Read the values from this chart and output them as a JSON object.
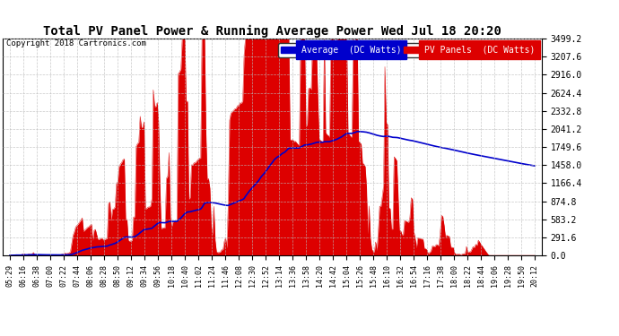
{
  "title": "Total PV Panel Power & Running Average Power Wed Jul 18 20:20",
  "copyright": "Copyright 2018 Cartronics.com",
  "ylabel_right_values": [
    0.0,
    291.6,
    583.2,
    874.8,
    1166.4,
    1458.0,
    1749.6,
    2041.2,
    2332.8,
    2624.4,
    2916.0,
    3207.6,
    3499.2
  ],
  "ymax": 3499.2,
  "ymin": 0.0,
  "background_color": "#ffffff",
  "plot_bg_color": "#ffffff",
  "grid_color": "#bbbbbb",
  "pv_color": "#dd0000",
  "avg_color": "#0000cc",
  "x_tick_labels": [
    "05:29",
    "06:16",
    "06:38",
    "07:00",
    "07:22",
    "07:44",
    "08:06",
    "08:28",
    "08:50",
    "09:12",
    "09:34",
    "09:56",
    "10:18",
    "10:40",
    "11:02",
    "11:24",
    "11:46",
    "12:08",
    "12:30",
    "12:52",
    "13:14",
    "13:36",
    "13:58",
    "14:20",
    "14:42",
    "15:04",
    "15:26",
    "15:48",
    "16:10",
    "16:32",
    "16:54",
    "17:16",
    "17:38",
    "18:00",
    "18:22",
    "18:44",
    "19:06",
    "19:28",
    "19:50",
    "20:12"
  ],
  "n_ticks": 40,
  "samples_per_tick": 10
}
